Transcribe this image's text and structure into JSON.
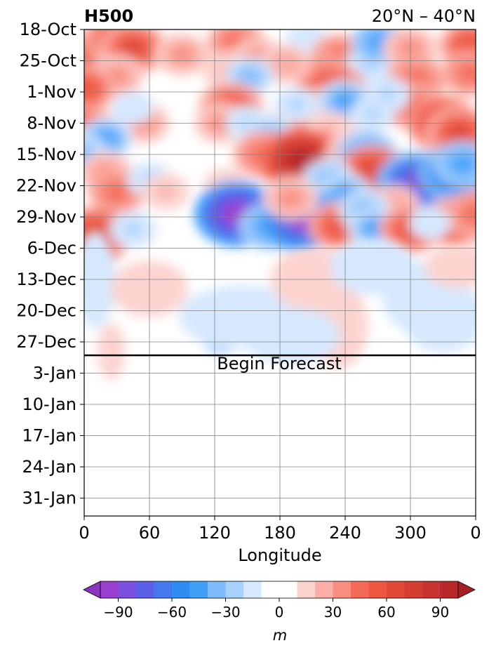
{
  "chart_data": {
    "type": "heatmap",
    "title_left": "H500",
    "title_right": "20°N – 40°N",
    "xlabel": "Longitude",
    "x_ticks": [
      "0",
      "60",
      "120",
      "180",
      "240",
      "300",
      "0"
    ],
    "x_tick_values": [
      0,
      60,
      120,
      180,
      240,
      300,
      360
    ],
    "y_ticks": [
      "18-Oct",
      "25-Oct",
      "1-Nov",
      "8-Nov",
      "15-Nov",
      "22-Nov",
      "29-Nov",
      "6-Dec",
      "13-Dec",
      "20-Dec",
      "27-Dec",
      "3-Jan",
      "10-Jan",
      "17-Jan",
      "24-Jan",
      "31-Jan"
    ],
    "forecast_line_date": "30-Dec",
    "forecast_label": "Begin Forecast",
    "colorbar": {
      "label": "m",
      "levels": [
        -100,
        -90,
        -80,
        -70,
        -60,
        -50,
        -40,
        -30,
        -20,
        -10,
        10,
        20,
        30,
        40,
        50,
        60,
        70,
        80,
        90,
        100
      ],
      "tick_labels": [
        "−90",
        "−60",
        "−30",
        "0",
        "30",
        "60",
        "90"
      ],
      "tick_values": [
        -90,
        -60,
        -30,
        0,
        30,
        60,
        90
      ],
      "colors": [
        "#9b3fd0",
        "#7b4fe0",
        "#5c5fe8",
        "#4777ec",
        "#2d8df2",
        "#3fa0fa",
        "#7dbbfb",
        "#a8d0fc",
        "#d6e8fe",
        "#ffffff",
        "#fcd3cf",
        "#fbafa6",
        "#f88d80",
        "#f46a59",
        "#ee5740",
        "#e04a36",
        "#d43d31",
        "#c93330",
        "#b8282a"
      ],
      "extend_low_color": "#8a35c0",
      "extend_high_color": "#a51f24"
    },
    "features": [
      {
        "lon": 8,
        "week": 0.8,
        "value": 60
      },
      {
        "lon": 28,
        "week": 0.3,
        "value": 55
      },
      {
        "lon": 45,
        "week": 0.6,
        "value": 65
      },
      {
        "lon": 90,
        "week": 0.8,
        "value": 40
      },
      {
        "lon": 140,
        "week": 0.4,
        "value": 45
      },
      {
        "lon": 160,
        "week": 0.9,
        "value": 35
      },
      {
        "lon": 205,
        "week": 0.3,
        "value": -15
      },
      {
        "lon": 235,
        "week": 0.9,
        "value": 50
      },
      {
        "lon": 262,
        "week": 1.1,
        "value": -25
      },
      {
        "lon": 272,
        "week": 0.4,
        "value": -45
      },
      {
        "lon": 300,
        "week": 0.6,
        "value": 40
      },
      {
        "lon": 355,
        "week": 0.5,
        "value": 55
      },
      {
        "lon": 355,
        "week": 1.4,
        "value": 45
      },
      {
        "lon": 305,
        "week": 1.6,
        "value": 50
      },
      {
        "lon": 220,
        "week": 1.5,
        "value": 45
      },
      {
        "lon": 185,
        "week": 1.1,
        "value": 30
      },
      {
        "lon": 130,
        "week": 1.3,
        "value": 25
      },
      {
        "lon": 30,
        "week": 1.5,
        "value": 40
      },
      {
        "lon": 0,
        "week": 1.9,
        "value": 55
      },
      {
        "lon": 152,
        "week": 1.5,
        "value": -30
      },
      {
        "lon": 228,
        "week": 2.0,
        "value": 70
      },
      {
        "lon": 215,
        "week": 2.6,
        "value": 55
      },
      {
        "lon": 298,
        "week": 2.4,
        "value": 50
      },
      {
        "lon": 330,
        "week": 3.0,
        "value": 70
      },
      {
        "lon": 345,
        "week": 3.3,
        "value": 65
      },
      {
        "lon": 255,
        "week": 2.6,
        "value": 30
      },
      {
        "lon": 135,
        "week": 2.5,
        "value": 60
      },
      {
        "lon": 125,
        "week": 3.0,
        "value": 35
      },
      {
        "lon": 195,
        "week": 3.0,
        "value": 40
      },
      {
        "lon": 55,
        "week": 3.0,
        "value": 35
      },
      {
        "lon": 15,
        "week": 3.2,
        "value": 25
      },
      {
        "lon": 240,
        "week": 2.3,
        "value": -40
      },
      {
        "lon": 195,
        "week": 2.4,
        "value": -20
      },
      {
        "lon": 278,
        "week": 2.1,
        "value": -25
      },
      {
        "lon": 265,
        "week": 2.7,
        "value": -20
      },
      {
        "lon": 150,
        "week": 3.0,
        "value": -20
      },
      {
        "lon": 45,
        "week": 2.5,
        "value": -15
      },
      {
        "lon": 0,
        "week": 3.2,
        "value": 55
      },
      {
        "lon": 20,
        "week": 3.5,
        "value": -40
      },
      {
        "lon": 170,
        "week": 3.4,
        "value": -35
      },
      {
        "lon": 225,
        "week": 3.2,
        "value": 25
      },
      {
        "lon": 165,
        "week": 4.0,
        "value": 50
      },
      {
        "lon": 200,
        "week": 4.2,
        "value": 95
      },
      {
        "lon": 245,
        "week": 4.0,
        "value": 30
      },
      {
        "lon": 260,
        "week": 4.0,
        "value": -50
      },
      {
        "lon": 265,
        "week": 4.6,
        "value": 70
      },
      {
        "lon": 305,
        "week": 4.9,
        "value": -85
      },
      {
        "lon": 340,
        "week": 4.6,
        "value": -70
      },
      {
        "lon": 348,
        "week": 4.3,
        "value": -45
      },
      {
        "lon": 285,
        "week": 5.6,
        "value": 30
      },
      {
        "lon": 225,
        "week": 4.8,
        "value": -35
      },
      {
        "lon": 240,
        "week": 5.3,
        "value": -40
      },
      {
        "lon": 0,
        "week": 4.0,
        "value": -30
      },
      {
        "lon": 20,
        "week": 4.6,
        "value": 40
      },
      {
        "lon": 30,
        "week": 5.2,
        "value": 45
      },
      {
        "lon": 60,
        "week": 4.8,
        "value": -20
      },
      {
        "lon": 75,
        "week": 5.2,
        "value": 25
      },
      {
        "lon": 130,
        "week": 5.0,
        "value": 20
      },
      {
        "lon": 140,
        "week": 5.9,
        "value": -95
      },
      {
        "lon": 170,
        "week": 6.3,
        "value": -50
      },
      {
        "lon": 200,
        "week": 6.1,
        "value": -90
      },
      {
        "lon": 190,
        "week": 5.4,
        "value": 40
      },
      {
        "lon": 235,
        "week": 6.3,
        "value": 55
      },
      {
        "lon": 258,
        "week": 5.8,
        "value": -35
      },
      {
        "lon": 268,
        "week": 6.4,
        "value": -40
      },
      {
        "lon": 300,
        "week": 6.4,
        "value": 55
      },
      {
        "lon": 340,
        "week": 6.2,
        "value": 60
      },
      {
        "lon": 360,
        "week": 5.9,
        "value": 50
      },
      {
        "lon": 10,
        "week": 6.6,
        "value": 70
      },
      {
        "lon": 45,
        "week": 6.4,
        "value": -25
      },
      {
        "lon": 318,
        "week": 6.2,
        "value": -15
      }
    ]
  }
}
